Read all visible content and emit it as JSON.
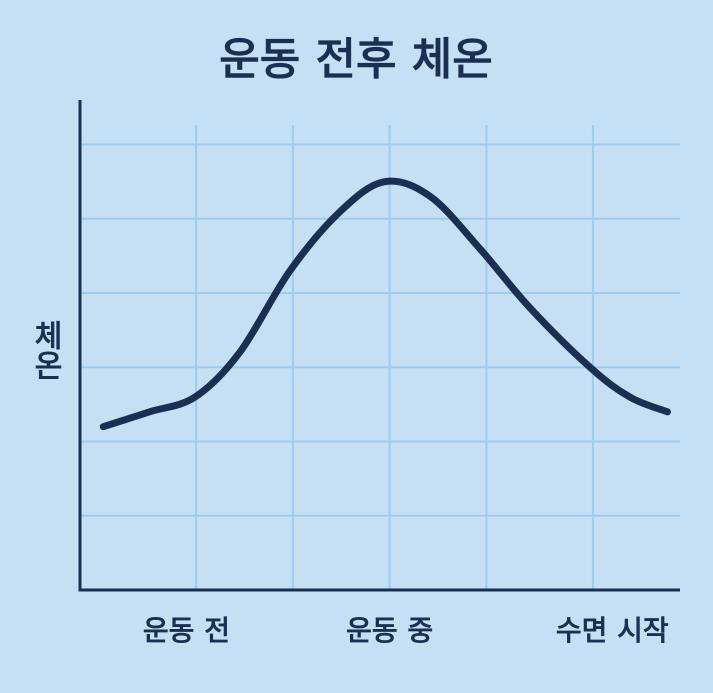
{
  "chart_data": {
    "type": "line",
    "title": "운동 전후 체온",
    "ylabel": "체온",
    "x": [
      0.24,
      0.72,
      1.19,
      1.65,
      2.17,
      2.69,
      3.15,
      3.62,
      4.13,
      4.65,
      5.27,
      5.68,
      6.07
    ],
    "values": [
      2.2,
      2.4,
      2.6,
      3.2,
      4.3,
      5.1,
      5.5,
      5.3,
      4.6,
      3.8,
      3.0,
      2.6,
      2.4
    ],
    "color": "#1b2f52",
    "xlim": [
      0,
      6.2
    ],
    "ylim": [
      0,
      6.6
    ],
    "xticks": [
      {
        "value": 1.1,
        "label": "운동 전"
      },
      {
        "value": 3.2,
        "label": "운동 중"
      },
      {
        "value": 5.5,
        "label": "수면 시작"
      }
    ],
    "xgrid": [
      1.2,
      2.2,
      3.2,
      4.2,
      5.3
    ],
    "yticks": [
      1,
      2,
      3,
      4,
      5,
      6
    ],
    "grid": true
  }
}
